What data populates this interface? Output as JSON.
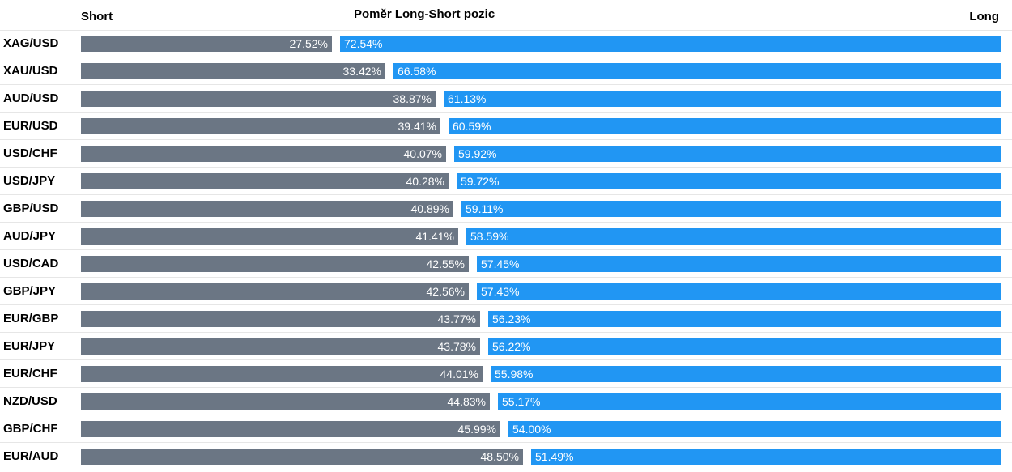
{
  "header": {
    "short_label": "Short",
    "title": "Poměr Long-Short pozic",
    "long_label": "Long"
  },
  "colors": {
    "short": "#6b7684",
    "long": "#2196f3"
  },
  "chart_data": {
    "type": "bar",
    "title": "Poměr Long-Short pozic",
    "categories": [
      "XAG/USD",
      "XAU/USD",
      "AUD/USD",
      "EUR/USD",
      "USD/CHF",
      "USD/JPY",
      "GBP/USD",
      "AUD/JPY",
      "USD/CAD",
      "GBP/JPY",
      "EUR/GBP",
      "EUR/JPY",
      "EUR/CHF",
      "NZD/USD",
      "GBP/CHF",
      "EUR/AUD"
    ],
    "series": [
      {
        "name": "Short",
        "values": [
          27.52,
          33.42,
          38.87,
          39.41,
          40.07,
          40.28,
          40.89,
          41.41,
          42.55,
          42.56,
          43.77,
          43.78,
          44.01,
          44.83,
          45.99,
          48.5
        ],
        "labels": [
          "27.52%",
          "33.42%",
          "38.87%",
          "39.41%",
          "40.07%",
          "40.28%",
          "40.89%",
          "41.41%",
          "42.55%",
          "42.56%",
          "43.77%",
          "43.78%",
          "44.01%",
          "44.83%",
          "45.99%",
          "48.50%"
        ]
      },
      {
        "name": "Long",
        "values": [
          72.54,
          66.58,
          61.13,
          60.59,
          59.92,
          59.72,
          59.11,
          58.59,
          57.45,
          57.43,
          56.23,
          56.22,
          55.98,
          55.17,
          54.0,
          51.49
        ],
        "labels": [
          "72.54%",
          "66.58%",
          "61.13%",
          "60.59%",
          "59.92%",
          "59.72%",
          "59.11%",
          "58.59%",
          "57.45%",
          "57.43%",
          "56.23%",
          "56.22%",
          "55.98%",
          "55.17%",
          "54.00%",
          "51.49%"
        ]
      }
    ]
  }
}
